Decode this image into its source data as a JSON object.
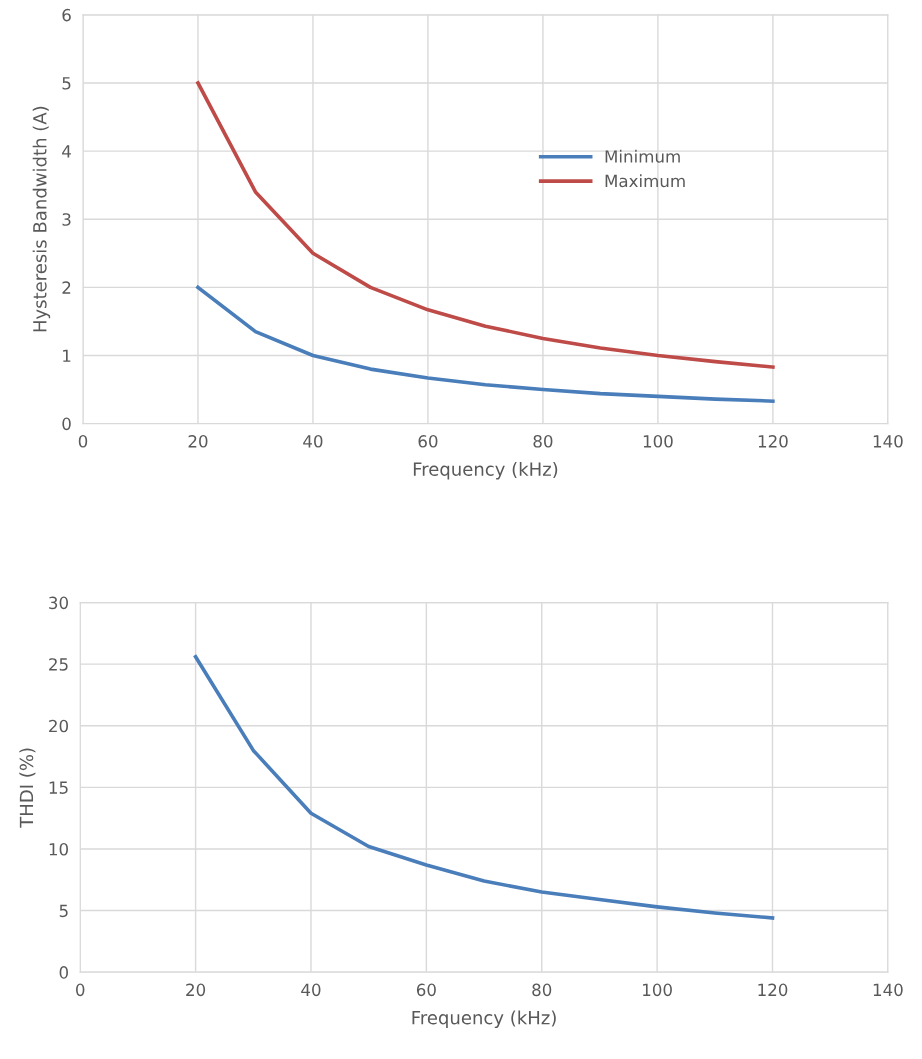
{
  "chart_data": [
    {
      "type": "line",
      "xlabel": "Frequency (kHz)",
      "ylabel": "Hysteresis Bandwidth (A)",
      "x": [
        20,
        30,
        40,
        50,
        60,
        70,
        80,
        90,
        100,
        110,
        120
      ],
      "xlim": [
        0,
        140
      ],
      "xticks": [
        0,
        20,
        40,
        60,
        80,
        100,
        120,
        140
      ],
      "ylim": [
        0,
        6
      ],
      "yticks": [
        0,
        1,
        2,
        3,
        4,
        5,
        6
      ],
      "grid": true,
      "legend": "right",
      "marker": "none",
      "line_style": "solid",
      "series": [
        {
          "name": "Minimum",
          "color": "#4a7ebb",
          "values": [
            2.0,
            1.35,
            1.0,
            0.8,
            0.67,
            0.57,
            0.5,
            0.44,
            0.4,
            0.36,
            0.33
          ]
        },
        {
          "name": "Maximum",
          "color": "#be4b48",
          "values": [
            5.0,
            3.4,
            2.5,
            2.0,
            1.67,
            1.43,
            1.25,
            1.11,
            1.0,
            0.91,
            0.83
          ]
        }
      ]
    },
    {
      "type": "line",
      "xlabel": "Frequency (kHz)",
      "ylabel": "THDI (%)",
      "x": [
        20,
        30,
        40,
        50,
        60,
        70,
        80,
        90,
        100,
        110,
        120
      ],
      "xlim": [
        0,
        140
      ],
      "xticks": [
        0,
        20,
        40,
        60,
        80,
        100,
        120,
        140
      ],
      "ylim": [
        0,
        30
      ],
      "yticks": [
        0,
        5,
        10,
        15,
        20,
        25,
        30
      ],
      "grid": true,
      "marker": "none",
      "line_style": "solid",
      "series": [
        {
          "color": "#4a7ebb",
          "values": [
            25.6,
            18.0,
            12.9,
            10.2,
            8.7,
            7.4,
            6.5,
            5.9,
            5.3,
            4.8,
            4.4
          ]
        }
      ]
    }
  ]
}
